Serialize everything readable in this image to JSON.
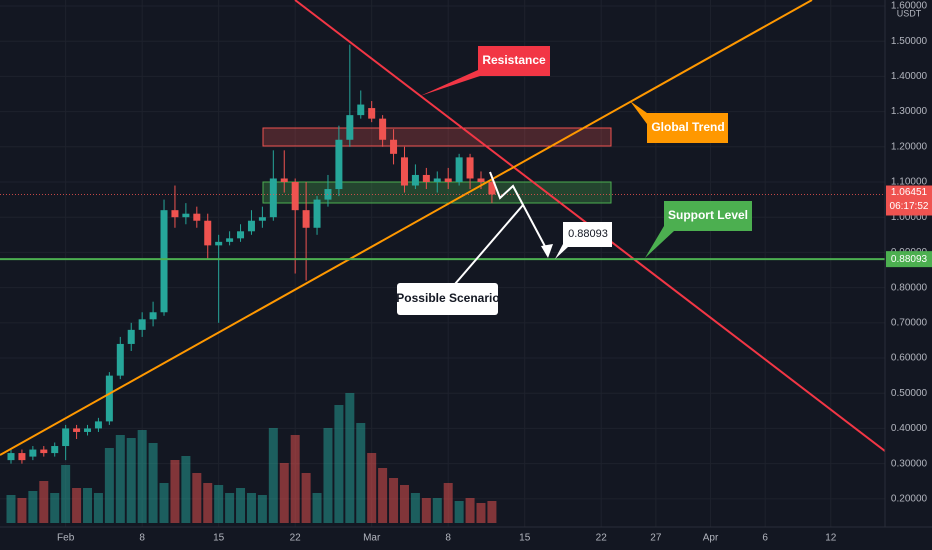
{
  "chart_data": {
    "type": "candlestick",
    "currency": "USDT",
    "countdown": "06:17:52",
    "support_level": 0.88093,
    "annotations": {
      "resistance": "Resistance",
      "global_trend": "Global Trend",
      "support_level": "Support Level",
      "possible_scenario": "Possible Scenario"
    },
    "categories": [
      null,
      null,
      null,
      null,
      null,
      "Feb",
      null,
      null,
      null,
      null,
      null,
      null,
      "8",
      null,
      null,
      null,
      null,
      null,
      null,
      "15",
      null,
      null,
      null,
      null,
      null,
      null,
      "22",
      null,
      null,
      null,
      null,
      null,
      null,
      "Mar",
      null,
      null,
      null,
      null,
      null,
      null,
      "8",
      null,
      null,
      null,
      null,
      null,
      null,
      "15",
      null,
      null,
      null,
      null,
      null,
      null,
      "22",
      null,
      null,
      null,
      null,
      "27",
      null,
      null,
      null,
      null,
      "Apr",
      null,
      null,
      null,
      null,
      "6",
      null,
      null,
      null,
      null,
      null,
      "12"
    ],
    "open": [
      0.31,
      0.33,
      0.32,
      0.34,
      0.33,
      0.35,
      0.4,
      0.39,
      0.4,
      0.42,
      0.55,
      0.64,
      0.68,
      0.71,
      0.73,
      1.02,
      1.0,
      1.01,
      0.99,
      0.92,
      0.93,
      0.94,
      0.96,
      0.99,
      1.0,
      1.11,
      1.1,
      1.02,
      0.97,
      1.05,
      1.08,
      1.22,
      1.29,
      1.31,
      1.28,
      1.22,
      1.17,
      1.09,
      1.12,
      1.1,
      1.11,
      1.1,
      1.17,
      1.11,
      1.1,
      null,
      null,
      null,
      null,
      null,
      null,
      null,
      null,
      null,
      null,
      null,
      null,
      null,
      null,
      null,
      null,
      null,
      null,
      null,
      null,
      null,
      null,
      null,
      null,
      null,
      null,
      null,
      null,
      null,
      null,
      null
    ],
    "high": [
      0.34,
      0.34,
      0.35,
      0.35,
      0.36,
      0.41,
      0.41,
      0.41,
      0.43,
      0.56,
      0.66,
      0.7,
      0.73,
      0.76,
      1.05,
      1.09,
      1.04,
      1.03,
      1.01,
      0.95,
      0.96,
      0.98,
      1.02,
      1.03,
      1.19,
      1.19,
      1.11,
      1.1,
      1.06,
      1.12,
      1.26,
      1.49,
      1.36,
      1.33,
      1.29,
      1.25,
      1.2,
      1.15,
      1.14,
      1.13,
      1.14,
      1.18,
      1.18,
      1.13,
      1.12,
      null,
      null,
      null,
      null,
      null,
      null,
      null,
      null,
      null,
      null,
      null,
      null,
      null,
      null,
      null,
      null,
      null,
      null,
      null,
      null,
      null,
      null,
      null,
      null,
      null,
      null,
      null,
      null,
      null,
      null,
      null
    ],
    "low": [
      0.3,
      0.3,
      0.31,
      0.32,
      0.32,
      0.31,
      0.37,
      0.38,
      0.39,
      0.41,
      0.54,
      0.62,
      0.66,
      0.69,
      0.72,
      0.97,
      0.98,
      0.97,
      0.88,
      0.7,
      0.92,
      0.93,
      0.95,
      0.97,
      0.99,
      1.07,
      0.84,
      0.82,
      0.95,
      1.03,
      1.06,
      1.2,
      1.28,
      1.27,
      1.2,
      1.15,
      1.07,
      1.08,
      1.08,
      1.07,
      1.08,
      1.09,
      1.08,
      1.08,
      1.04,
      null,
      null,
      null,
      null,
      null,
      null,
      null,
      null,
      null,
      null,
      null,
      null,
      null,
      null,
      null,
      null,
      null,
      null,
      null,
      null,
      null,
      null,
      null,
      null,
      null,
      null,
      null,
      null,
      null,
      null,
      null
    ],
    "close": [
      0.33,
      0.31,
      0.34,
      0.33,
      0.35,
      0.4,
      0.39,
      0.4,
      0.42,
      0.55,
      0.64,
      0.68,
      0.71,
      0.73,
      1.02,
      1.0,
      1.01,
      0.99,
      0.92,
      0.93,
      0.94,
      0.96,
      0.99,
      1.0,
      1.11,
      1.1,
      1.02,
      0.97,
      1.05,
      1.08,
      1.22,
      1.29,
      1.32,
      1.28,
      1.22,
      1.18,
      1.09,
      1.12,
      1.1,
      1.11,
      1.1,
      1.17,
      1.11,
      1.1,
      1.06451,
      null,
      null,
      null,
      null,
      null,
      null,
      null,
      null,
      null,
      null,
      null,
      null,
      null,
      null,
      null,
      null,
      null,
      null,
      null,
      null,
      null,
      null,
      null,
      null,
      null,
      null,
      null,
      null,
      null,
      null,
      null
    ],
    "volume": [
      28,
      25,
      32,
      42,
      30,
      58,
      35,
      35,
      30,
      75,
      88,
      85,
      93,
      80,
      40,
      63,
      67,
      50,
      40,
      38,
      30,
      35,
      30,
      28,
      95,
      60,
      88,
      50,
      30,
      95,
      118,
      130,
      100,
      70,
      55,
      45,
      38,
      30,
      25,
      25,
      40,
      22,
      25,
      20,
      22,
      null,
      null,
      null,
      null,
      null,
      null,
      null,
      null,
      null,
      null,
      null,
      null,
      null,
      null,
      null,
      null,
      null,
      null,
      null,
      null,
      null,
      null,
      null,
      null,
      null,
      null,
      null,
      null,
      null,
      null,
      null
    ],
    "up_color": "#26a69a",
    "down_color": "#ef5350",
    "ylim": [
      0.12,
      1.617
    ],
    "yticks": [
      {
        "value": 0.2,
        "label": "0.20000"
      },
      {
        "value": 0.3,
        "label": "0.30000"
      },
      {
        "value": 0.4,
        "label": "0.40000"
      },
      {
        "value": 0.5,
        "label": "0.50000"
      },
      {
        "value": 0.6,
        "label": "0.60000"
      },
      {
        "value": 0.7,
        "label": "0.70000"
      },
      {
        "value": 0.8,
        "label": "0.80000"
      },
      {
        "value": 0.9,
        "label": "0.90000"
      },
      {
        "value": 1.0,
        "label": "1.00000"
      },
      {
        "value": 1.1,
        "label": "1.10000"
      },
      {
        "value": 1.2,
        "label": "1.20000"
      },
      {
        "value": 1.3,
        "label": "1.30000"
      },
      {
        "value": 1.4,
        "label": "1.40000"
      },
      {
        "value": 1.5,
        "label": "1.50000"
      },
      {
        "value": 1.6,
        "label": "1.60000"
      }
    ],
    "grid": true
  }
}
